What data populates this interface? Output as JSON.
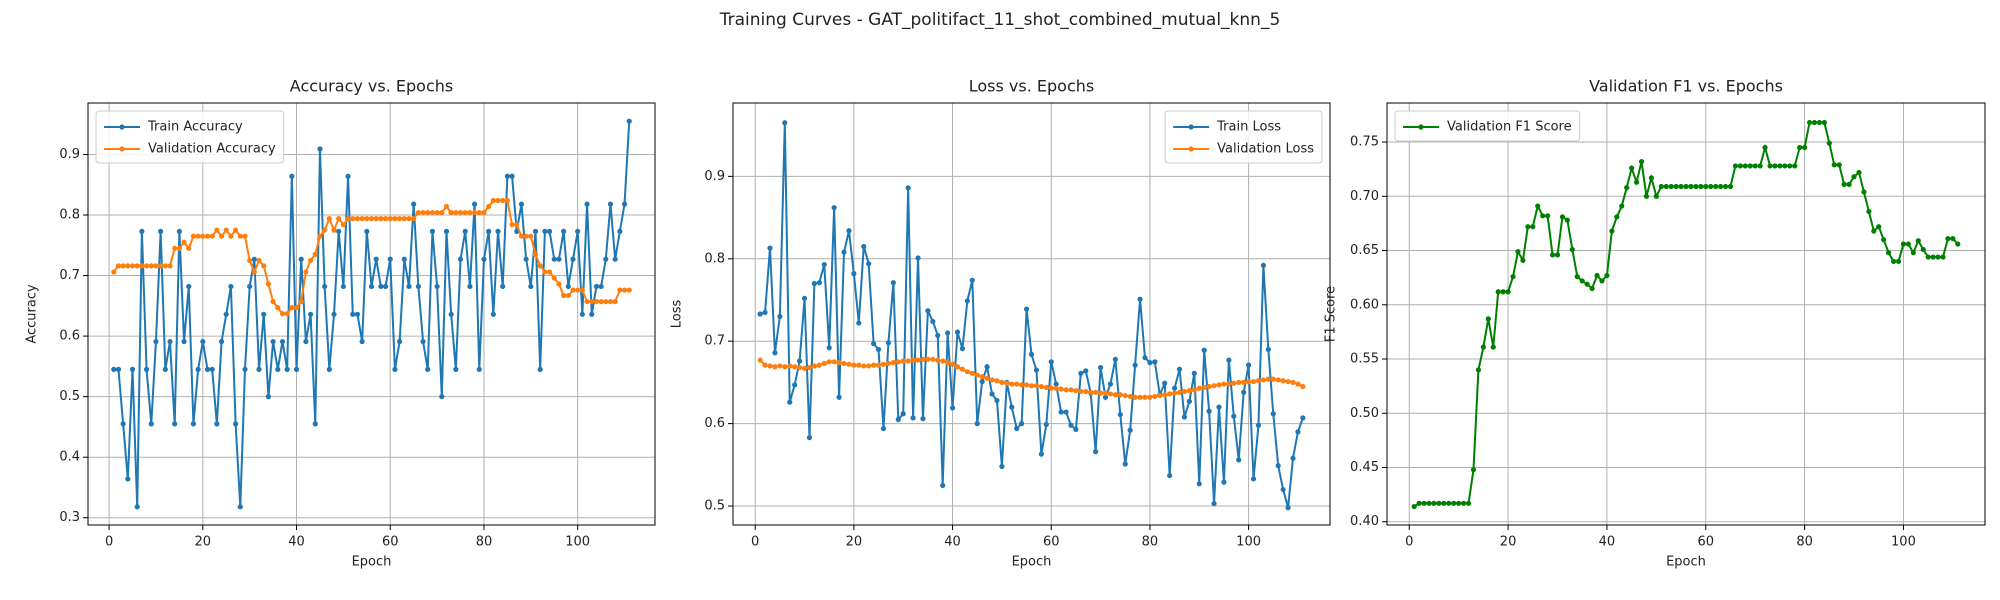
{
  "title": "Training Curves - GAT_politifact_11_shot_combined_mutual_knn_5",
  "chart_data": [
    {
      "type": "line",
      "title": "Accuracy vs. Epochs",
      "xlabel": "Epoch",
      "ylabel": "Accuracy",
      "grid": true,
      "legend": "upper left",
      "x": [
        1,
        2,
        3,
        4,
        5,
        6,
        7,
        8,
        9,
        10,
        11,
        12,
        13,
        14,
        15,
        16,
        17,
        18,
        19,
        20,
        21,
        22,
        23,
        24,
        25,
        26,
        27,
        28,
        29,
        30,
        31,
        32,
        33,
        34,
        35,
        36,
        37,
        38,
        39,
        40,
        41,
        42,
        43,
        44,
        45,
        46,
        47,
        48,
        49,
        50,
        51,
        52,
        53,
        54,
        55,
        56,
        57,
        58,
        59,
        60,
        61,
        62,
        63,
        64,
        65,
        66,
        67,
        68,
        69,
        70,
        71,
        72,
        73,
        74,
        75,
        76,
        77,
        78,
        79,
        80,
        81,
        82,
        83,
        84,
        85,
        86,
        87,
        88,
        89,
        90,
        91,
        92,
        93,
        94,
        95,
        96,
        97,
        98,
        99,
        100,
        101,
        102,
        103,
        104,
        105,
        106,
        107,
        108,
        109,
        110,
        111
      ],
      "series": [
        {
          "name": "Train Accuracy",
          "color": "#1f77b4",
          "values": [
            0.545,
            0.545,
            0.455,
            0.364,
            0.545,
            0.318,
            0.773,
            0.545,
            0.455,
            0.591,
            0.773,
            0.545,
            0.591,
            0.455,
            0.773,
            0.591,
            0.682,
            0.455,
            0.545,
            0.591,
            0.545,
            0.545,
            0.455,
            0.591,
            0.636,
            0.682,
            0.455,
            0.318,
            0.545,
            0.682,
            0.727,
            0.545,
            0.636,
            0.5,
            0.591,
            0.545,
            0.591,
            0.545,
            0.864,
            0.545,
            0.727,
            0.591,
            0.636,
            0.455,
            0.909,
            0.682,
            0.545,
            0.636,
            0.773,
            0.682,
            0.864,
            0.636,
            0.636,
            0.591,
            0.773,
            0.682,
            0.727,
            0.682,
            0.682,
            0.727,
            0.545,
            0.591,
            0.727,
            0.682,
            0.818,
            0.682,
            0.591,
            0.545,
            0.773,
            0.682,
            0.5,
            0.773,
            0.636,
            0.545,
            0.727,
            0.773,
            0.682,
            0.818,
            0.545,
            0.727,
            0.773,
            0.636,
            0.773,
            0.682,
            0.864,
            0.864,
            0.773,
            0.818,
            0.727,
            0.682,
            0.773,
            0.545,
            0.773,
            0.773,
            0.727,
            0.727,
            0.773,
            0.682,
            0.727,
            0.773,
            0.636,
            0.818,
            0.636,
            0.682,
            0.682,
            0.727,
            0.818,
            0.727,
            0.773,
            0.818,
            0.955
          ]
        },
        {
          "name": "Validation Accuracy",
          "color": "#ff7f0e",
          "values": [
            0.706,
            0.716,
            0.716,
            0.716,
            0.716,
            0.716,
            0.716,
            0.716,
            0.716,
            0.716,
            0.716,
            0.716,
            0.716,
            0.745,
            0.745,
            0.755,
            0.745,
            0.765,
            0.765,
            0.765,
            0.765,
            0.765,
            0.775,
            0.765,
            0.775,
            0.765,
            0.775,
            0.765,
            0.765,
            0.725,
            0.706,
            0.725,
            0.716,
            0.686,
            0.657,
            0.647,
            0.637,
            0.637,
            0.647,
            0.647,
            0.657,
            0.706,
            0.725,
            0.735,
            0.765,
            0.775,
            0.794,
            0.775,
            0.794,
            0.784,
            0.794,
            0.794,
            0.794,
            0.794,
            0.794,
            0.794,
            0.794,
            0.794,
            0.794,
            0.794,
            0.794,
            0.794,
            0.794,
            0.794,
            0.794,
            0.804,
            0.804,
            0.804,
            0.804,
            0.804,
            0.804,
            0.814,
            0.804,
            0.804,
            0.804,
            0.804,
            0.804,
            0.804,
            0.804,
            0.804,
            0.814,
            0.824,
            0.824,
            0.824,
            0.824,
            0.784,
            0.784,
            0.765,
            0.765,
            0.765,
            0.735,
            0.716,
            0.706,
            0.706,
            0.696,
            0.686,
            0.667,
            0.667,
            0.676,
            0.676,
            0.676,
            0.657,
            0.657,
            0.657,
            0.657,
            0.657,
            0.657,
            0.657,
            0.676,
            0.676,
            0.676
          ]
        }
      ],
      "xlim": [
        -4.5,
        116.5
      ],
      "xticks": [
        0,
        20,
        40,
        60,
        80,
        100
      ],
      "ylim": [
        0.288,
        0.985
      ],
      "yticks": [
        0.3,
        0.4,
        0.5,
        0.6,
        0.7,
        0.8,
        0.9
      ]
    },
    {
      "type": "line",
      "title": "Loss vs. Epochs",
      "xlabel": "Epoch",
      "ylabel": "Loss",
      "grid": true,
      "legend": "upper right",
      "x": [
        1,
        2,
        3,
        4,
        5,
        6,
        7,
        8,
        9,
        10,
        11,
        12,
        13,
        14,
        15,
        16,
        17,
        18,
        19,
        20,
        21,
        22,
        23,
        24,
        25,
        26,
        27,
        28,
        29,
        30,
        31,
        32,
        33,
        34,
        35,
        36,
        37,
        38,
        39,
        40,
        41,
        42,
        43,
        44,
        45,
        46,
        47,
        48,
        49,
        50,
        51,
        52,
        53,
        54,
        55,
        56,
        57,
        58,
        59,
        60,
        61,
        62,
        63,
        64,
        65,
        66,
        67,
        68,
        69,
        70,
        71,
        72,
        73,
        74,
        75,
        76,
        77,
        78,
        79,
        80,
        81,
        82,
        83,
        84,
        85,
        86,
        87,
        88,
        89,
        90,
        91,
        92,
        93,
        94,
        95,
        96,
        97,
        98,
        99,
        100,
        101,
        102,
        103,
        104,
        105,
        106,
        107,
        108,
        109,
        110,
        111
      ],
      "series": [
        {
          "name": "Train Loss",
          "color": "#1f77b4",
          "values": [
            0.733,
            0.735,
            0.813,
            0.686,
            0.73,
            0.965,
            0.626,
            0.647,
            0.676,
            0.752,
            0.583,
            0.77,
            0.771,
            0.793,
            0.692,
            0.862,
            0.632,
            0.808,
            0.834,
            0.782,
            0.722,
            0.815,
            0.794,
            0.697,
            0.69,
            0.594,
            0.698,
            0.771,
            0.605,
            0.612,
            0.886,
            0.607,
            0.801,
            0.606,
            0.737,
            0.724,
            0.707,
            0.525,
            0.71,
            0.619,
            0.711,
            0.691,
            0.749,
            0.774,
            0.6,
            0.651,
            0.669,
            0.636,
            0.628,
            0.548,
            0.65,
            0.62,
            0.594,
            0.6,
            0.739,
            0.684,
            0.665,
            0.563,
            0.599,
            0.675,
            0.648,
            0.614,
            0.614,
            0.598,
            0.593,
            0.661,
            0.664,
            0.637,
            0.566,
            0.668,
            0.632,
            0.648,
            0.678,
            0.611,
            0.551,
            0.592,
            0.671,
            0.751,
            0.68,
            0.674,
            0.675,
            0.635,
            0.649,
            0.537,
            0.643,
            0.666,
            0.608,
            0.627,
            0.661,
            0.527,
            0.689,
            0.615,
            0.503,
            0.62,
            0.529,
            0.677,
            0.609,
            0.556,
            0.638,
            0.671,
            0.533,
            0.598,
            0.792,
            0.69,
            0.612,
            0.549,
            0.52,
            0.498,
            0.558,
            0.59,
            0.607
          ]
        },
        {
          "name": "Validation Loss",
          "color": "#ff7f0e",
          "values": [
            0.677,
            0.671,
            0.67,
            0.669,
            0.67,
            0.669,
            0.67,
            0.669,
            0.668,
            0.667,
            0.668,
            0.67,
            0.671,
            0.673,
            0.675,
            0.675,
            0.674,
            0.673,
            0.672,
            0.671,
            0.671,
            0.67,
            0.67,
            0.671,
            0.671,
            0.672,
            0.673,
            0.674,
            0.675,
            0.676,
            0.676,
            0.677,
            0.677,
            0.678,
            0.678,
            0.678,
            0.677,
            0.676,
            0.674,
            0.672,
            0.669,
            0.666,
            0.663,
            0.661,
            0.659,
            0.657,
            0.655,
            0.653,
            0.652,
            0.65,
            0.649,
            0.648,
            0.648,
            0.647,
            0.647,
            0.646,
            0.646,
            0.645,
            0.644,
            0.643,
            0.643,
            0.642,
            0.641,
            0.641,
            0.64,
            0.639,
            0.639,
            0.638,
            0.638,
            0.637,
            0.637,
            0.636,
            0.635,
            0.635,
            0.634,
            0.633,
            0.632,
            0.632,
            0.632,
            0.632,
            0.633,
            0.634,
            0.635,
            0.636,
            0.637,
            0.638,
            0.639,
            0.64,
            0.641,
            0.643,
            0.644,
            0.645,
            0.646,
            0.647,
            0.648,
            0.648,
            0.649,
            0.65,
            0.65,
            0.651,
            0.651,
            0.652,
            0.653,
            0.654,
            0.654,
            0.653,
            0.652,
            0.651,
            0.65,
            0.648,
            0.645
          ]
        }
      ],
      "xlim": [
        -4.5,
        116.5
      ],
      "xticks": [
        0,
        20,
        40,
        60,
        80,
        100
      ],
      "ylim": [
        0.477,
        0.989
      ],
      "yticks": [
        0.5,
        0.6,
        0.7,
        0.8,
        0.9
      ]
    },
    {
      "type": "line",
      "title": "Validation F1 vs. Epochs",
      "xlabel": "Epoch",
      "ylabel": "F1 Score",
      "grid": true,
      "legend": "upper left",
      "x": [
        1,
        2,
        3,
        4,
        5,
        6,
        7,
        8,
        9,
        10,
        11,
        12,
        13,
        14,
        15,
        16,
        17,
        18,
        19,
        20,
        21,
        22,
        23,
        24,
        25,
        26,
        27,
        28,
        29,
        30,
        31,
        32,
        33,
        34,
        35,
        36,
        37,
        38,
        39,
        40,
        41,
        42,
        43,
        44,
        45,
        46,
        47,
        48,
        49,
        50,
        51,
        52,
        53,
        54,
        55,
        56,
        57,
        58,
        59,
        60,
        61,
        62,
        63,
        64,
        65,
        66,
        67,
        68,
        69,
        70,
        71,
        72,
        73,
        74,
        75,
        76,
        77,
        78,
        79,
        80,
        81,
        82,
        83,
        84,
        85,
        86,
        87,
        88,
        89,
        90,
        91,
        92,
        93,
        94,
        95,
        96,
        97,
        98,
        99,
        100,
        101,
        102,
        103,
        104,
        105,
        106,
        107,
        108,
        109,
        110,
        111
      ],
      "series": [
        {
          "name": "Validation F1 Score",
          "color": "#008000",
          "values": [
            0.414,
            0.417,
            0.417,
            0.417,
            0.417,
            0.417,
            0.417,
            0.417,
            0.417,
            0.417,
            0.417,
            0.417,
            0.448,
            0.54,
            0.561,
            0.587,
            0.561,
            0.612,
            0.612,
            0.612,
            0.626,
            0.649,
            0.641,
            0.672,
            0.672,
            0.691,
            0.682,
            0.682,
            0.646,
            0.646,
            0.681,
            0.678,
            0.651,
            0.626,
            0.622,
            0.619,
            0.615,
            0.627,
            0.622,
            0.627,
            0.668,
            0.681,
            0.691,
            0.708,
            0.726,
            0.713,
            0.732,
            0.7,
            0.717,
            0.7,
            0.709,
            0.709,
            0.709,
            0.709,
            0.709,
            0.709,
            0.709,
            0.709,
            0.709,
            0.709,
            0.709,
            0.709,
            0.709,
            0.709,
            0.709,
            0.728,
            0.728,
            0.728,
            0.728,
            0.728,
            0.728,
            0.745,
            0.728,
            0.728,
            0.728,
            0.728,
            0.728,
            0.728,
            0.745,
            0.745,
            0.768,
            0.768,
            0.768,
            0.768,
            0.749,
            0.729,
            0.729,
            0.711,
            0.711,
            0.718,
            0.722,
            0.704,
            0.686,
            0.668,
            0.672,
            0.66,
            0.648,
            0.64,
            0.64,
            0.656,
            0.656,
            0.648,
            0.659,
            0.651,
            0.644,
            0.644,
            0.644,
            0.644,
            0.661,
            0.661,
            0.656
          ]
        }
      ],
      "xlim": [
        -4.5,
        116.5
      ],
      "xticks": [
        0,
        20,
        40,
        60,
        80,
        100
      ],
      "ylim": [
        0.397,
        0.786
      ],
      "yticks": [
        {
          "value": 0.4,
          "label": "0.40"
        },
        0.45,
        {
          "value": 0.5,
          "label": "0.50"
        },
        0.55,
        {
          "value": 0.6,
          "label": "0.60"
        },
        0.65,
        {
          "value": 0.7,
          "label": "0.70"
        },
        0.75
      ]
    }
  ]
}
